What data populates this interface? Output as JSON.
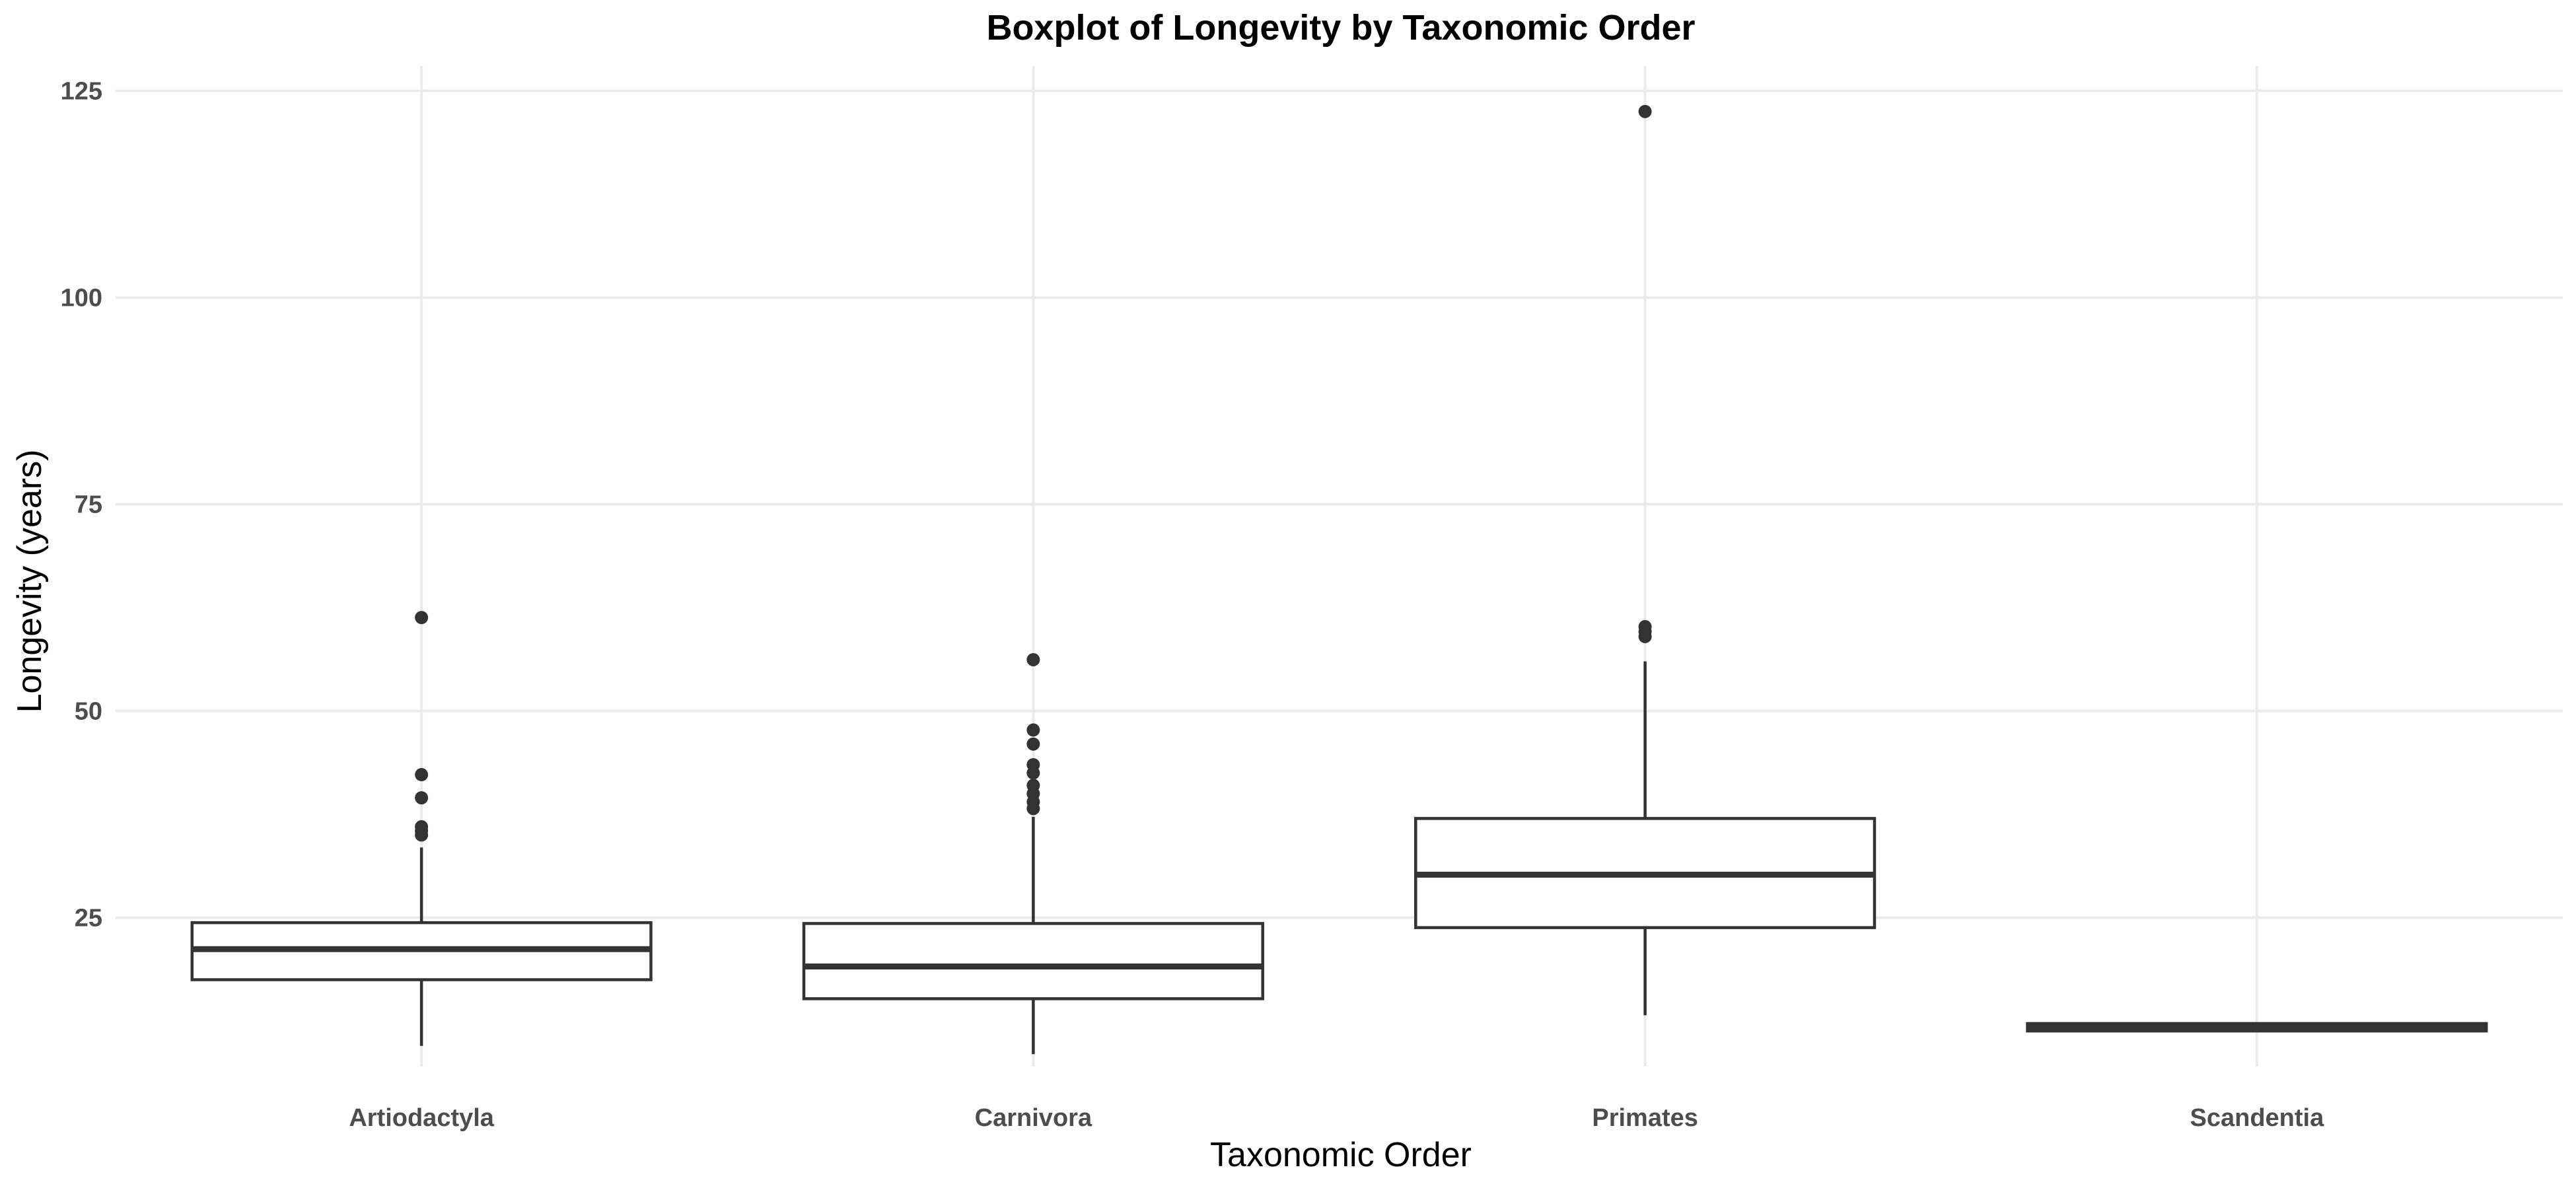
{
  "chart_data": {
    "type": "boxplot",
    "title": "Boxplot of Longevity by Taxonomic Order",
    "xlabel": "Taxonomic Order",
    "ylabel": "Longevity (years)",
    "ylim": [
      7,
      128
    ],
    "yticks": [
      25,
      50,
      75,
      100,
      125
    ],
    "grid": true,
    "legend": "none",
    "categories": [
      "Artiodactyla",
      "Carnivora",
      "Primates",
      "Scandentia"
    ],
    "boxes": [
      {
        "category": "Artiodactyla",
        "whisker_low": 9.5,
        "q1": 17.5,
        "median": 21.2,
        "q3": 24.4,
        "whisker_high": 33.5,
        "outliers": [
          35,
          35.5,
          36,
          39.5,
          42.3,
          61.3
        ]
      },
      {
        "category": "Carnivora",
        "whisker_low": 8.5,
        "q1": 15.2,
        "median": 19.1,
        "q3": 24.3,
        "whisker_high": 37.2,
        "outliers": [
          38.2,
          39,
          40,
          41,
          42.5,
          43.5,
          46,
          47.7,
          56.2
        ]
      },
      {
        "category": "Primates",
        "whisker_low": 13.2,
        "q1": 23.8,
        "median": 30.2,
        "q3": 37,
        "whisker_high": 56,
        "outliers": [
          59,
          59.6,
          60.2,
          122.5
        ]
      },
      {
        "category": "Scandentia",
        "whisker_low": 11.2,
        "q1": 11.3,
        "median": 11.7,
        "q3": 12.2,
        "whisker_high": 12.2,
        "outliers": []
      }
    ]
  }
}
